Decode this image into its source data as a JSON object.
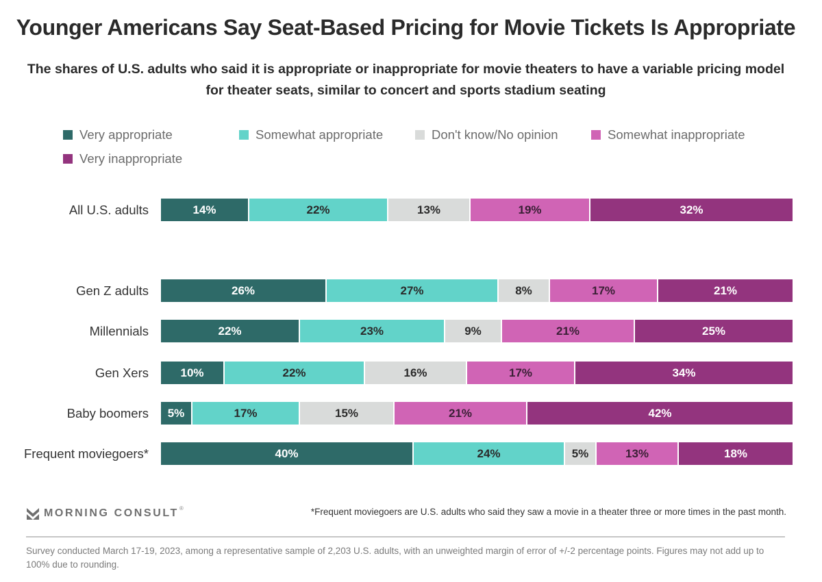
{
  "chart_data": {
    "type": "bar",
    "orientation": "horizontal-stacked-100",
    "title": "Younger Americans Say Seat-Based Pricing for Movie Tickets Is Appropriate",
    "subtitle": "The shares of U.S. adults who said it is appropriate or inappropriate for movie theaters to have a variable pricing model for theater seats, similar to concert and sports stadium seating",
    "legend_position": "top",
    "xlabel": "",
    "ylabel": "",
    "grid": false,
    "value_suffix": "%",
    "categories": [
      "All U.S. adults",
      "Gen Z adults",
      "Millennials",
      "Gen Xers",
      "Baby boomers",
      "Frequent moviegoers*"
    ],
    "series": [
      {
        "name": "Very appropriate",
        "color": "#2e6a68",
        "label_color": "#ffffff",
        "values": [
          14,
          26,
          22,
          10,
          5,
          40
        ]
      },
      {
        "name": "Somewhat appropriate",
        "color": "#62d3c9",
        "label_color": "#2a2a2a",
        "values": [
          22,
          27,
          23,
          22,
          17,
          24
        ]
      },
      {
        "name": "Don't know/No opinion",
        "color": "#d9dbda",
        "label_color": "#2a2a2a",
        "values": [
          13,
          8,
          9,
          16,
          15,
          5
        ]
      },
      {
        "name": "Somewhat inappropriate",
        "color": "#d064b5",
        "label_color": "#3a1f35",
        "values": [
          19,
          17,
          21,
          17,
          21,
          13
        ]
      },
      {
        "name": "Very inappropriate",
        "color": "#93347e",
        "label_color": "#ffffff",
        "values": [
          32,
          21,
          25,
          34,
          42,
          18
        ]
      }
    ]
  },
  "footer": {
    "logo_text": "MORNING CONSULT",
    "logo_reg": "®",
    "footnote": "*Frequent moviegoers are U.S. adults who said they saw a movie in a theater three or more times in the past month.",
    "source": "Survey conducted March 17-19, 2023, among a representative sample of 2,203 U.S. adults, with an unweighted margin of error of +/-2 percentage points. Figures may not add up to 100% due to rounding."
  }
}
